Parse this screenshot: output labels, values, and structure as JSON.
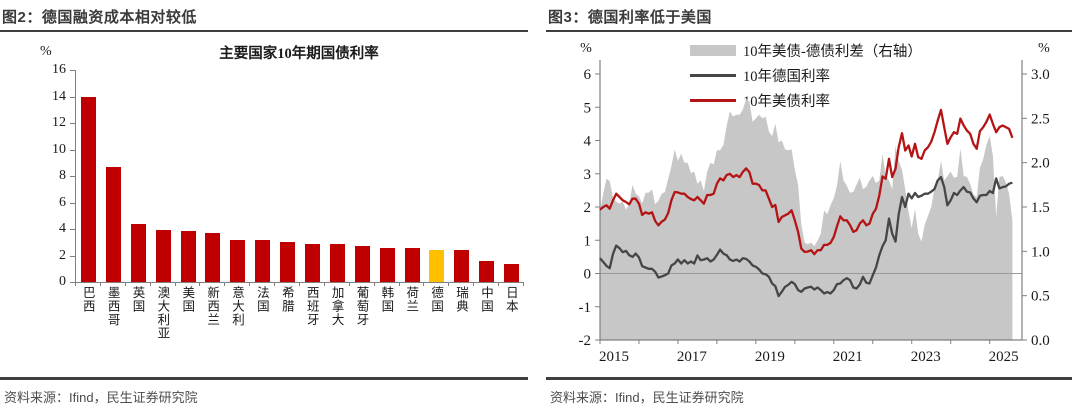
{
  "figures": [
    {
      "header": "图2：德国融资成本相对较低",
      "source": "资料来源：Ifind，民生证券研究院"
    },
    {
      "header": "图3：德国利率低于美国",
      "source": "资料来源：Ifind，民生证券研究院"
    }
  ],
  "colors": {
    "bar_red": "#c00000",
    "bar_highlight_yellow": "#ffc000",
    "line_us_red": "#b51414",
    "line_de_gray": "#464646",
    "area_gray": "#c7c7c7",
    "axis_gray": "#808080",
    "zero_line_gray": "#9a9a9a",
    "header_text": "#3a3a3a",
    "source_text": "#4d4d4d"
  },
  "chart_data": [
    {
      "type": "bar",
      "title": "主要国家10年期国债利率",
      "unit_label": "%",
      "categories": [
        "巴西",
        "墨西哥",
        "英国",
        "澳大利亚",
        "美国",
        "新西兰",
        "意大利",
        "法国",
        "希腊",
        "西班牙",
        "加拿大",
        "葡萄牙",
        "韩国",
        "荷兰",
        "德国",
        "瑞典",
        "中国",
        "日本"
      ],
      "values": [
        14.0,
        8.65,
        4.4,
        3.95,
        3.85,
        3.7,
        3.2,
        3.15,
        3.0,
        2.9,
        2.85,
        2.7,
        2.6,
        2.55,
        2.45,
        2.4,
        1.6,
        1.4
      ],
      "highlight_category": "德国",
      "ylim": [
        0,
        16
      ],
      "ytick_step": 2,
      "grid": false
    },
    {
      "type": "line",
      "legend": [
        {
          "label": "10年美债-德债利差（右轴）",
          "style": "area"
        },
        {
          "label": "10年德国利率",
          "style": "line-de"
        },
        {
          "label": "10年美债利率",
          "style": "line-us"
        }
      ],
      "x_start_year": 2015,
      "x_step_months": 1,
      "x_axis_end": 2025.83,
      "x_ticks": [
        2015,
        2017,
        2019,
        2021,
        2023,
        2025
      ],
      "left_axis": {
        "label": "%",
        "min": -2,
        "max": 6,
        "tick_step": 1
      },
      "right_axis": {
        "label": "%",
        "min": 0,
        "max": 3,
        "tick_step": 0.5
      },
      "note": "gray area = US minus German yield, plotted on right axis",
      "series": [
        {
          "name": "10年德国利率",
          "role": "de",
          "axis": "left",
          "values": [
            0.46,
            0.35,
            0.23,
            0.16,
            0.59,
            0.84,
            0.76,
            0.64,
            0.68,
            0.55,
            0.5,
            0.6,
            0.48,
            0.22,
            0.18,
            0.14,
            0.14,
            0.05,
            -0.12,
            -0.09,
            -0.05,
            0.0,
            0.24,
            0.3,
            0.42,
            0.3,
            0.4,
            0.3,
            0.36,
            0.3,
            0.54,
            0.4,
            0.42,
            0.46,
            0.36,
            0.42,
            0.56,
            0.72,
            0.6,
            0.55,
            0.42,
            0.38,
            0.42,
            0.36,
            0.46,
            0.44,
            0.36,
            0.24,
            0.2,
            0.12,
            0.0,
            -0.02,
            -0.1,
            -0.3,
            -0.38,
            -0.68,
            -0.55,
            -0.4,
            -0.34,
            -0.25,
            -0.32,
            -0.5,
            -0.55,
            -0.45,
            -0.42,
            -0.4,
            -0.48,
            -0.42,
            -0.5,
            -0.6,
            -0.56,
            -0.6,
            -0.5,
            -0.32,
            -0.3,
            -0.2,
            -0.14,
            -0.2,
            -0.42,
            -0.45,
            -0.33,
            -0.1,
            -0.28,
            -0.3,
            -0.05,
            0.18,
            0.55,
            0.82,
            1.0,
            1.65,
            1.2,
            0.96,
            1.78,
            2.3,
            2.0,
            2.4,
            2.26,
            2.42,
            2.3,
            2.34,
            2.4,
            2.4,
            2.46,
            2.54,
            2.8,
            2.9,
            2.6,
            2.05,
            2.2,
            2.42,
            2.36,
            2.5,
            2.6,
            2.46,
            2.44,
            2.26,
            2.14,
            2.34,
            2.36,
            2.36,
            2.48,
            2.42,
            2.86,
            2.56,
            2.6,
            2.62,
            2.7,
            2.73
          ]
        },
        {
          "name": "10年美债利率",
          "role": "us",
          "axis": "left",
          "values": [
            1.92,
            2.0,
            2.05,
            1.95,
            2.2,
            2.4,
            2.3,
            2.2,
            2.15,
            2.08,
            2.25,
            2.25,
            2.1,
            1.76,
            1.84,
            1.8,
            1.84,
            1.58,
            1.45,
            1.56,
            1.62,
            1.82,
            2.2,
            2.45,
            2.44,
            2.4,
            2.4,
            2.3,
            2.24,
            2.2,
            2.3,
            2.2,
            2.1,
            2.36,
            2.36,
            2.4,
            2.7,
            2.86,
            2.8,
            2.96,
            3.0,
            2.9,
            2.96,
            2.9,
            3.06,
            3.16,
            3.05,
            2.7,
            2.7,
            2.66,
            2.5,
            2.5,
            2.25,
            2.0,
            2.06,
            1.55,
            1.7,
            1.75,
            1.8,
            1.9,
            1.6,
            1.25,
            0.75,
            0.65,
            0.66,
            0.7,
            0.58,
            0.7,
            0.7,
            0.86,
            0.86,
            0.92,
            1.1,
            1.42,
            1.72,
            1.6,
            1.6,
            1.46,
            1.25,
            1.3,
            1.5,
            1.6,
            1.45,
            1.5,
            1.8,
            1.95,
            2.35,
            2.92,
            2.85,
            3.45,
            2.9,
            3.15,
            3.8,
            4.22,
            3.7,
            3.85,
            3.52,
            3.9,
            3.5,
            3.45,
            3.7,
            3.8,
            3.96,
            4.25,
            4.6,
            4.92,
            4.4,
            3.9,
            4.1,
            4.25,
            4.2,
            4.66,
            4.45,
            4.3,
            4.2,
            3.9,
            3.75,
            4.28,
            4.4,
            4.56,
            4.78,
            4.5,
            4.25,
            4.4,
            4.45,
            4.4,
            4.35,
            4.08
          ]
        },
        {
          "name": "10年美债-德债利差（右轴）",
          "role": "spread",
          "axis": "right",
          "derived": "us_minus_de"
        }
      ]
    }
  ]
}
